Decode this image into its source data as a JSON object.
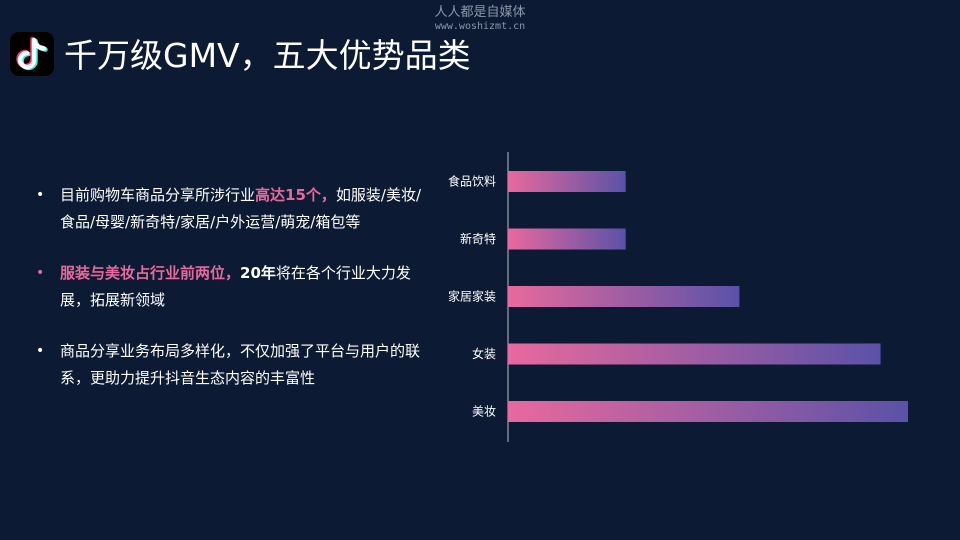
{
  "watermark": {
    "line1": "人人都是自媒体",
    "line2": "www.woshizmt.cn"
  },
  "title": "千万级GMV，五大优势品类",
  "bullets": [
    {
      "parts": [
        "目前购物车商品分享",
        "所涉行业",
        "高达15个",
        "，",
        "如服装/美妆/食品/母婴/新奇特/家居/户外运营/萌宠/箱包等"
      ]
    },
    {
      "parts": [
        "服装与美妆占行业前两位，",
        "20年",
        "将在各个行业大力发展，拓展新领域"
      ]
    },
    {
      "parts": [
        "商品分享业务布局多样化，不仅加强了平台与用户的联系，更助力提升抖音生态内容的丰富性"
      ]
    }
  ],
  "colors": {
    "background": "#0c1a33",
    "accent": "#e8699d",
    "bar_start": "#e8699d",
    "bar_end": "#5a52a8"
  },
  "icons": {
    "logo": "tiktok-logo-icon",
    "bullet": "bullet-dot-icon"
  },
  "chart_data": {
    "type": "bar",
    "orientation": "horizontal",
    "categories": [
      "食品饮料",
      "新奇特",
      "家居家装",
      "女装",
      "美妆"
    ],
    "values": [
      30,
      30,
      59,
      95,
      102
    ],
    "xlim": [
      0,
      102
    ],
    "title": "",
    "xlabel": "",
    "ylabel": "",
    "grid": false,
    "legend": "none"
  }
}
